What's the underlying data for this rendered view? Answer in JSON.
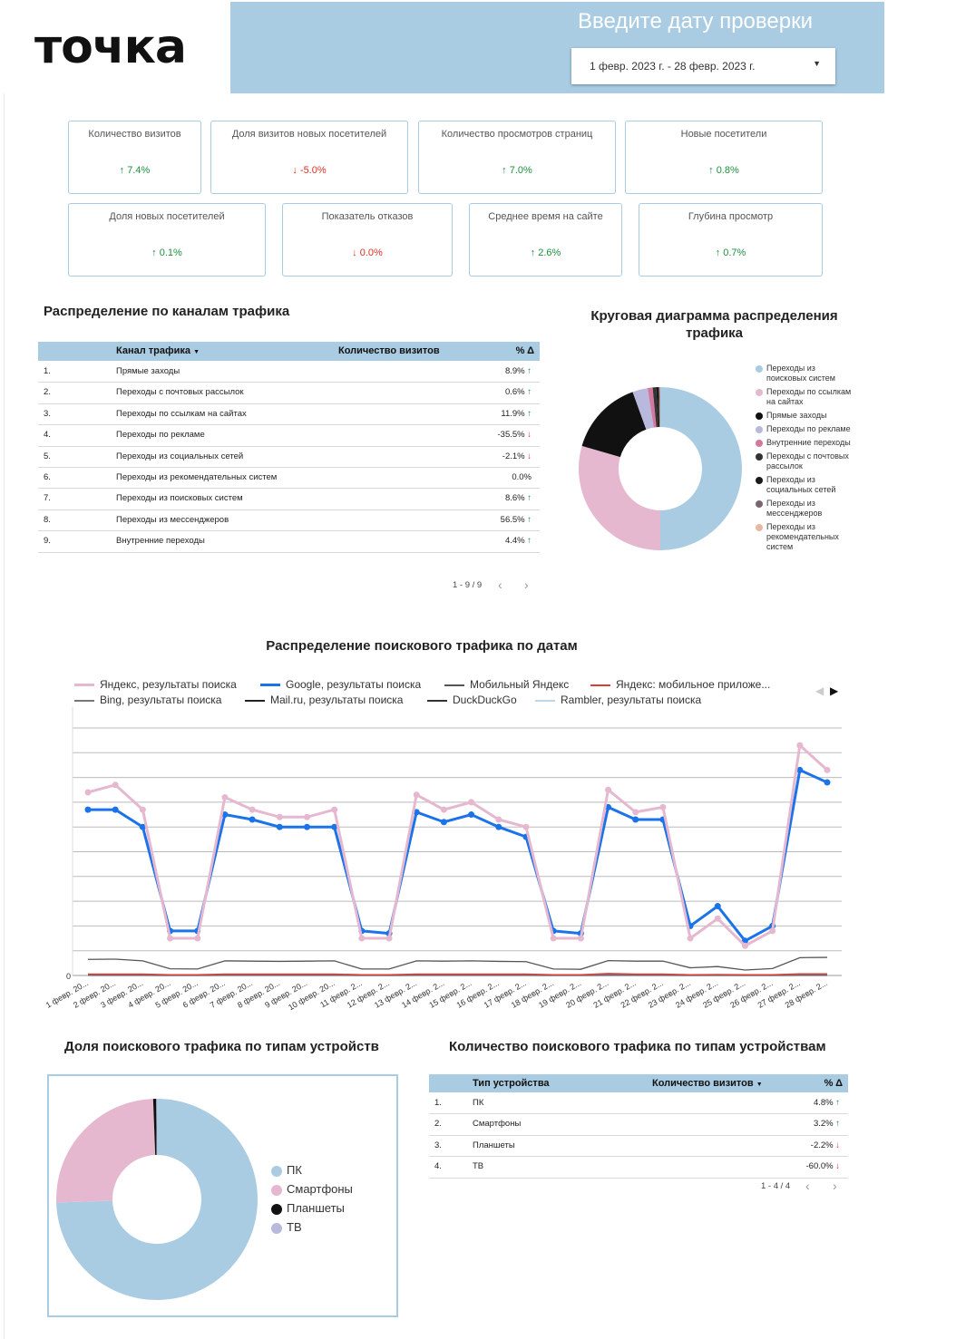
{
  "header": {
    "logo": "точка",
    "title": "Введите дату проверки",
    "date_range": "1 февр. 2023 г. - 28 февр. 2023 г."
  },
  "kpis": [
    {
      "label": "Количество визитов",
      "value": "7.4%",
      "dir": "up"
    },
    {
      "label": "Доля визитов новых посетителей",
      "value": "-5.0%",
      "dir": "down"
    },
    {
      "label": "Количество просмотров страниц",
      "value": "7.0%",
      "dir": "up"
    },
    {
      "label": "Новые посетители",
      "value": "0.8%",
      "dir": "up"
    },
    {
      "label": "Доля новых посетителей",
      "value": "0.1%",
      "dir": "up"
    },
    {
      "label": "Показатель отказов",
      "value": "0.0%",
      "dir": "down"
    },
    {
      "label": "Среднее время на сайте",
      "value": "2.6%",
      "dir": "up"
    },
    {
      "label": "Глубина просмотр",
      "value": "0.7%",
      "dir": "up"
    }
  ],
  "channels_table": {
    "title": "Распределение по каналам трафика",
    "columns": [
      "Канал трафика",
      "Количество визитов",
      "% Δ"
    ],
    "rows": [
      {
        "n": "1.",
        "name": "Прямые заходы",
        "delta": "8.9%",
        "dir": "up"
      },
      {
        "n": "2.",
        "name": "Переходы с почтовых рассылок",
        "delta": "0.6%",
        "dir": "up"
      },
      {
        "n": "3.",
        "name": "Переходы по ссылкам на сайтах",
        "delta": "11.9%",
        "dir": "up"
      },
      {
        "n": "4.",
        "name": "Переходы по рекламе",
        "delta": "-35.5%",
        "dir": "down"
      },
      {
        "n": "5.",
        "name": "Переходы из социальных сетей",
        "delta": "-2.1%",
        "dir": "down"
      },
      {
        "n": "6.",
        "name": "Переходы из рекомендательных систем",
        "delta": "0.0%",
        "dir": ""
      },
      {
        "n": "7.",
        "name": "Переходы из поисковых систем",
        "delta": "8.6%",
        "dir": "up"
      },
      {
        "n": "8.",
        "name": "Переходы из мессенджеров",
        "delta": "56.5%",
        "dir": "up"
      },
      {
        "n": "9.",
        "name": "Внутренние переходы",
        "delta": "4.4%",
        "dir": "up"
      }
    ],
    "pager": "1 - 9 / 9"
  },
  "traffic_pie": {
    "title": "Круговая диаграмма распределения трафика",
    "legend": [
      {
        "label": "Переходы из поисковых систем",
        "color": "#a9cce3"
      },
      {
        "label": "Переходы по ссылкам на сайтах",
        "color": "#e6b8d0"
      },
      {
        "label": "Прямые заходы",
        "color": "#111111"
      },
      {
        "label": "Переходы по рекламе",
        "color": "#b9b9dd"
      },
      {
        "label": "Внутренние переходы",
        "color": "#d4789f"
      },
      {
        "label": "Переходы с почтовых рассылок",
        "color": "#333333"
      },
      {
        "label": "Переходы из социальных сетей",
        "color": "#1a1a1a"
      },
      {
        "label": "Переходы из мессенджеров",
        "color": "#7a6670"
      },
      {
        "label": "Переходы из рекомендательных систем",
        "color": "#e8b9a0"
      }
    ]
  },
  "chart_data": [
    {
      "type": "pie",
      "labels": [
        "Переходы из поисковых систем",
        "Переходы по ссылкам на сайтах",
        "Прямые заходы",
        "Переходы по рекламе",
        "Внутренние переходы",
        "Переходы с почтовых рассылок",
        "Переходы из социальных сетей",
        "Переходы из мессенджеров",
        "Переходы из рекомендательных систем"
      ],
      "values": [
        50.0,
        29.5,
        15.0,
        3.0,
        1.0,
        0.7,
        0.5,
        0.2,
        0.1
      ],
      "colors": [
        "#a9cce3",
        "#e6b8d0",
        "#111111",
        "#b9b9dd",
        "#d4789f",
        "#333333",
        "#1a1a1a",
        "#7a6670",
        "#e8b9a0"
      ],
      "donut": true,
      "legend": "right"
    },
    {
      "type": "line",
      "title": "Распределение поискового трафика по датам",
      "x": [
        "1 февр. 20...",
        "2 февр. 20...",
        "3 февр. 20...",
        "4 февр. 20...",
        "5 февр. 20...",
        "6 февр. 20...",
        "7 февр. 20...",
        "8 февр. 20...",
        "9 февр. 20...",
        "10 февр. 20...",
        "11 февр. 2...",
        "12 февр. 2...",
        "13 февр. 2...",
        "14 февр. 2...",
        "15 февр. 2...",
        "16 февр. 2...",
        "17 февр. 2...",
        "18 февр. 2...",
        "19 февр. 2...",
        "20 февр. 2...",
        "21 февр. 2...",
        "22 февр. 2...",
        "23 февр. 2...",
        "24 февр. 2...",
        "25 февр. 2...",
        "26 февр. 2...",
        "27 февр. 2...",
        "28 февр. 2..."
      ],
      "ylim": [
        0,
        100
      ],
      "y_ticks": [
        "0"
      ],
      "legend": "top",
      "series": [
        {
          "name": "Яндекс, результаты поиска",
          "color": "#e6b8d0",
          "marker": true,
          "values": [
            74,
            77,
            67,
            15,
            15,
            72,
            67,
            64,
            64,
            67,
            15,
            15,
            73,
            67,
            70,
            63,
            60,
            15,
            15,
            75,
            66,
            68,
            15,
            23,
            12,
            18,
            93,
            83
          ]
        },
        {
          "name": "Google, результаты поиска",
          "color": "#1a73e8",
          "marker": true,
          "values": [
            67,
            67,
            60,
            18,
            18,
            65,
            63,
            60,
            60,
            60,
            18,
            17,
            66,
            62,
            65,
            60,
            56,
            18,
            17,
            68,
            63,
            63,
            20,
            28,
            14,
            20,
            83,
            78
          ]
        },
        {
          "name": "Мобильный Яндекс",
          "color": "#555555",
          "marker": false,
          "values": [
            6.5,
            6.6,
            5.9,
            2.7,
            2.6,
            5.9,
            5.8,
            5.7,
            5.8,
            5.9,
            2.6,
            2.6,
            5.9,
            5.8,
            5.9,
            5.7,
            5.6,
            2.6,
            2.5,
            6.0,
            5.8,
            5.8,
            3.1,
            3.6,
            2.2,
            2.8,
            7.2,
            7.3
          ]
        },
        {
          "name": "Яндекс: мобильное приложе...",
          "color": "#e53935",
          "marker": false,
          "values": [
            0.6,
            0.6,
            0.6,
            0.3,
            0.3,
            0.6,
            0.6,
            0.6,
            0.6,
            0.6,
            0.3,
            0.3,
            0.6,
            0.6,
            0.6,
            0.6,
            0.6,
            0.3,
            0.3,
            0.8,
            0.6,
            0.6,
            0.3,
            0.4,
            0.3,
            0.3,
            0.7,
            0.7
          ]
        },
        {
          "name": "Bing, результаты поиска",
          "color": "#777777",
          "marker": false,
          "values": [
            0.3,
            0.3,
            0.3,
            0.2,
            0.2,
            0.3,
            0.3,
            0.3,
            0.3,
            0.3,
            0.2,
            0.2,
            0.3,
            0.3,
            0.3,
            0.3,
            0.3,
            0.2,
            0.2,
            0.3,
            0.3,
            0.3,
            0.2,
            0.2,
            0.2,
            0.2,
            0.3,
            0.3
          ]
        },
        {
          "name": "Mail.ru, результаты поиска",
          "color": "#222222",
          "marker": false,
          "values": [
            0.2,
            0.2,
            0.2,
            0.1,
            0.1,
            0.2,
            0.2,
            0.2,
            0.2,
            0.2,
            0.1,
            0.1,
            0.2,
            0.2,
            0.2,
            0.2,
            0.2,
            0.1,
            0.1,
            0.2,
            0.2,
            0.2,
            0.1,
            0.1,
            0.1,
            0.1,
            0.2,
            0.2
          ]
        },
        {
          "name": "DuckDuckGo",
          "color": "#333333",
          "marker": false,
          "values": [
            0.1,
            0.1,
            0.1,
            0.05,
            0.05,
            0.1,
            0.1,
            0.1,
            0.1,
            0.1,
            0.05,
            0.05,
            0.1,
            0.1,
            0.1,
            0.1,
            0.1,
            0.05,
            0.05,
            0.1,
            0.1,
            0.1,
            0.05,
            0.05,
            0.05,
            0.05,
            0.1,
            0.1
          ]
        },
        {
          "name": "Rambler, результаты поиска",
          "color": "#bcd6ea",
          "marker": false,
          "values": [
            0.05,
            0.05,
            0.05,
            0.02,
            0.02,
            0.05,
            0.05,
            0.05,
            0.05,
            0.05,
            0.02,
            0.02,
            0.05,
            0.05,
            0.05,
            0.05,
            0.05,
            0.02,
            0.02,
            0.05,
            0.05,
            0.05,
            0.02,
            0.02,
            0.02,
            0.02,
            0.05,
            0.05
          ]
        }
      ]
    },
    {
      "type": "pie",
      "title": "Доля поискового трафика по типам устройств",
      "labels": [
        "ПК",
        "Смартфоны",
        "Планшеты",
        "ТВ"
      ],
      "values": [
        74.5,
        24.9,
        0.5,
        0.1
      ],
      "colors": [
        "#a9cce3",
        "#e6b8d0",
        "#111111",
        "#b9b9dd"
      ],
      "donut": true,
      "legend": "right"
    }
  ],
  "devices_table": {
    "title": "Количество поискового трафика по типам устройствам",
    "columns": [
      "Тип устройства",
      "Количество визитов",
      "% Δ"
    ],
    "rows": [
      {
        "n": "1.",
        "name": "ПК",
        "delta": "4.8%",
        "dir": "up"
      },
      {
        "n": "2.",
        "name": "Смартфоны",
        "delta": "3.2%",
        "dir": "up"
      },
      {
        "n": "3.",
        "name": "Планшеты",
        "delta": "-2.2%",
        "dir": "down"
      },
      {
        "n": "4.",
        "name": "ТВ",
        "delta": "-60.0%",
        "dir": "down"
      }
    ],
    "pager": "1 - 4 / 4"
  },
  "devices_pie_title": "Доля поискового трафика по типам устройств"
}
